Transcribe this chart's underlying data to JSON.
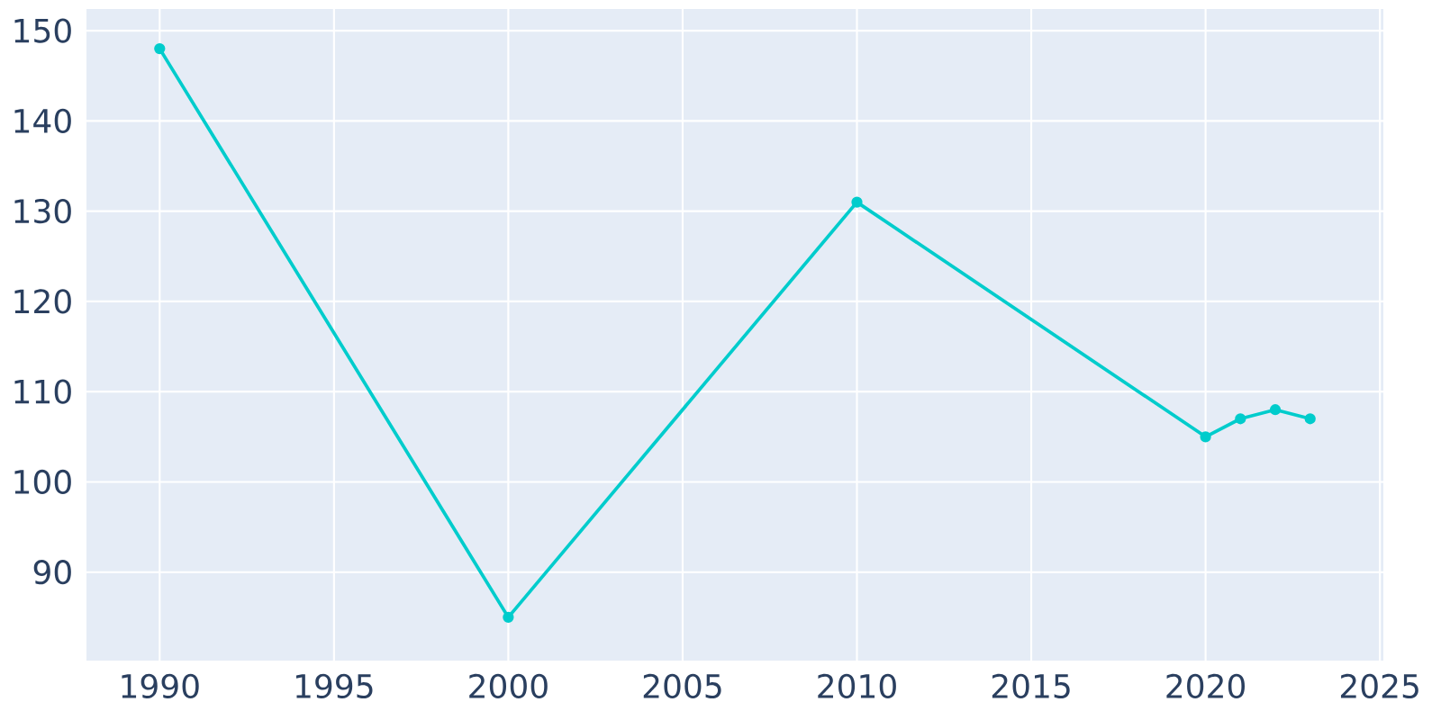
{
  "chart_data": {
    "type": "line",
    "x": [
      1990,
      2000,
      2010,
      2020,
      2021,
      2022,
      2023
    ],
    "series": [
      {
        "color": "#00cccc",
        "values": [
          148,
          85,
          131,
          105,
          107,
          108,
          107
        ]
      }
    ],
    "xlim": [
      1987.9,
      2025.1
    ],
    "ylim": [
      80.2,
      152.4
    ],
    "xticks": [
      1990,
      1995,
      2000,
      2005,
      2010,
      2015,
      2020,
      2025
    ],
    "yticks": [
      90,
      100,
      110,
      120,
      130,
      140,
      150
    ],
    "grid": true,
    "marker": "circle",
    "line_style": "solid"
  }
}
